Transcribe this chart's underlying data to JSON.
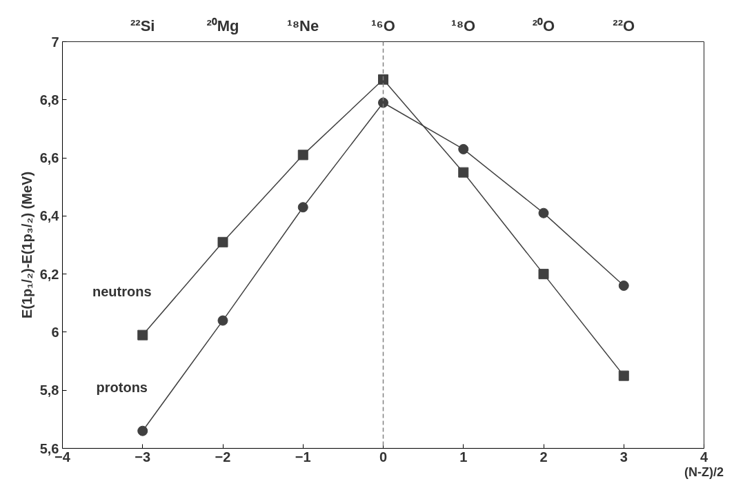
{
  "chart_data": {
    "type": "line",
    "xlabel": "(N-Z)/2",
    "ylabel": "E(1p₁/₂)-E(1p₃/₂) (MeV)",
    "x": [
      -3,
      -2,
      -1,
      0,
      1,
      2,
      3
    ],
    "series": [
      {
        "name": "neutrons",
        "color": "#404040",
        "marker": "square",
        "values": [
          5.99,
          6.31,
          6.61,
          6.87,
          6.55,
          6.2,
          5.85
        ]
      },
      {
        "name": "protons",
        "color": "#404040",
        "marker": "circle",
        "values": [
          5.66,
          6.04,
          6.43,
          6.79,
          6.63,
          6.41,
          6.16
        ]
      }
    ],
    "xlim": [
      -4,
      4
    ],
    "xticks": [
      -4,
      -3,
      -2,
      -1,
      0,
      1,
      2,
      3,
      4
    ],
    "annotations": [
      "²²Si",
      "²⁰Mg",
      "¹⁸Ne",
      "¹⁶O",
      "¹⁸O",
      "²⁰O",
      "²²O"
    ],
    "ylim": [
      5.6,
      7
    ],
    "yticks": [
      {
        "value": 5.6,
        "label": "5,6"
      },
      {
        "value": 5.8,
        "label": "5,8"
      },
      6,
      {
        "value": 6.2,
        "label": "6,2"
      },
      {
        "value": 6.4,
        "label": "6,4"
      },
      {
        "value": 6.6,
        "label": "6,6"
      },
      {
        "value": 6.8,
        "label": "6,8"
      },
      7
    ],
    "ref_lines": [
      {
        "axis": "x",
        "value": 0,
        "color": "#808080",
        "line_style": "dashed"
      }
    ],
    "grid": false
  }
}
